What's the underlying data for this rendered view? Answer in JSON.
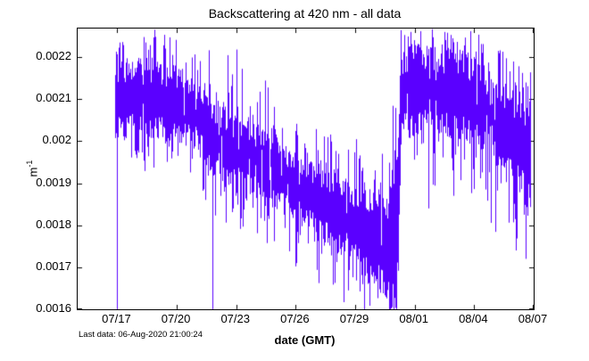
{
  "chart_data": {
    "type": "line",
    "title": "Backscattering at 420 nm - all data",
    "xlabel": "date (GMT)",
    "ylabel": "m^-1",
    "ylabel_base": "m",
    "ylabel_sup": "-1",
    "annotation": "Last data: 06-Aug-2020 21:00:24",
    "line_color": "#5a00ff",
    "axis_color": "#000000",
    "background_color": "#ffffff",
    "grid": false,
    "legend": false,
    "x_axis": {
      "label": "date (GMT)",
      "tick_labels": [
        "07/17",
        "07/20",
        "07/23",
        "07/26",
        "07/29",
        "08/01",
        "08/04",
        "08/07"
      ],
      "tick_days": [
        2,
        5,
        8,
        11,
        14,
        17,
        20,
        23
      ],
      "span_days": 23,
      "axis_start_date": "07/15",
      "axis_end_date": "08/07"
    },
    "y_axis": {
      "label": "m^-1",
      "ticks": [
        0.0016,
        0.0017,
        0.0018,
        0.0019,
        0.002,
        0.0021,
        0.0022
      ],
      "tick_labels": [
        "0.0016",
        "0.0017",
        "0.0018",
        "0.0019",
        "0.002",
        "0.0021",
        "0.0022"
      ],
      "ylim": [
        0.0016,
        0.002268
      ]
    },
    "series": [
      {
        "name": "backscattering at 420 nm",
        "color": "#5a00ff",
        "data_start_day": 1.89,
        "data_end_day": 22.86,
        "envelope_points": [
          [
            1.89,
            0.00201,
            0.00219,
            0.00194,
            0.00227
          ],
          [
            3.2,
            0.00201,
            0.0022,
            0.00193,
            0.00227
          ],
          [
            4.6,
            0.002,
            0.00218,
            0.00192,
            0.00227
          ],
          [
            5.7,
            0.00199,
            0.00216,
            0.0019,
            0.00226
          ],
          [
            6.3,
            0.00196,
            0.00213,
            0.00186,
            0.00222
          ],
          [
            7.0,
            0.00191,
            0.00209,
            0.00181,
            0.00222
          ],
          [
            7.8,
            0.00188,
            0.00206,
            0.00177,
            0.00223
          ],
          [
            8.6,
            0.00187,
            0.00206,
            0.00176,
            0.00224
          ],
          [
            9.4,
            0.00186,
            0.00204,
            0.00174,
            0.00218
          ],
          [
            10.3,
            0.00183,
            0.002,
            0.00171,
            0.0021
          ],
          [
            11.2,
            0.0018,
            0.00197,
            0.00169,
            0.00206
          ],
          [
            12.2,
            0.00177,
            0.00194,
            0.00166,
            0.00204
          ],
          [
            13.2,
            0.00173,
            0.00192,
            0.00162,
            0.00202
          ],
          [
            14.1,
            0.00169,
            0.0019,
            0.0016,
            0.00201
          ],
          [
            15.0,
            0.00166,
            0.00188,
            0.00159,
            0.002
          ],
          [
            15.7,
            0.00162,
            0.00189,
            0.00158,
            0.00204
          ],
          [
            16.1,
            0.0016,
            0.00198,
            0.00157,
            0.0022
          ],
          [
            16.3,
            0.002,
            0.00222,
            0.0019,
            0.00227
          ],
          [
            17.2,
            0.00202,
            0.00223,
            0.00191,
            0.00227
          ],
          [
            18.2,
            0.00202,
            0.00222,
            0.00189,
            0.00227
          ],
          [
            19.2,
            0.002,
            0.00221,
            0.00187,
            0.00227
          ],
          [
            20.2,
            0.00199,
            0.00219,
            0.00185,
            0.00226
          ],
          [
            21.2,
            0.00193,
            0.00215,
            0.00176,
            0.00224
          ],
          [
            22.0,
            0.0019,
            0.00212,
            0.00172,
            0.00221
          ],
          [
            22.86,
            0.00181,
            0.0021,
            0.00172,
            0.00218
          ]
        ],
        "deep_spikes": [
          [
            1.98,
            0.0016
          ],
          [
            6.8,
            0.0016
          ],
          [
            17.7,
            0.00184
          ],
          [
            18.95,
            0.00187
          ],
          [
            22.1,
            0.00174
          ],
          [
            22.6,
            0.00172
          ]
        ]
      }
    ]
  }
}
